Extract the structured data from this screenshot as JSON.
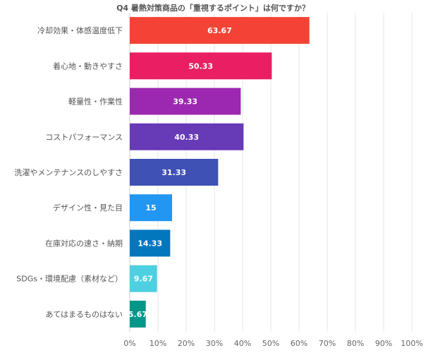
{
  "chart_data": {
    "type": "bar",
    "orientation": "horizontal",
    "title": "Q4 暑熱対策商品の「重視するポイント」は何ですか？",
    "categories": [
      "冷却効果・体感温度低下",
      "着心地・動きやすさ",
      "軽量性・作業性",
      "コストパフォーマンス",
      "洗濯やメンテナンスのしやすさ",
      "デザイン性・見た目",
      "在庫対応の速さ・納期",
      "SDGs・環境配慮（素材など）",
      "あてはまるものはない"
    ],
    "values": [
      63.67,
      50.33,
      39.33,
      40.33,
      31.33,
      15,
      14.33,
      9.67,
      5.67
    ],
    "value_labels": [
      "63.67",
      "50.33",
      "39.33",
      "40.33",
      "31.33",
      "15",
      "14.33",
      "9.67",
      "5.67"
    ],
    "colors": [
      "#f44336",
      "#e91e63",
      "#9c27b0",
      "#673ab7",
      "#3f51b5",
      "#2196f3",
      "#0277bd",
      "#4dd0e1",
      "#009688"
    ],
    "xlim": [
      0,
      100
    ],
    "xticks": [
      "0%",
      "10%",
      "20%",
      "30%",
      "40%",
      "50%",
      "60%",
      "70%",
      "80%",
      "90%",
      "100%"
    ],
    "grid": true,
    "xlabel": "",
    "ylabel": ""
  }
}
